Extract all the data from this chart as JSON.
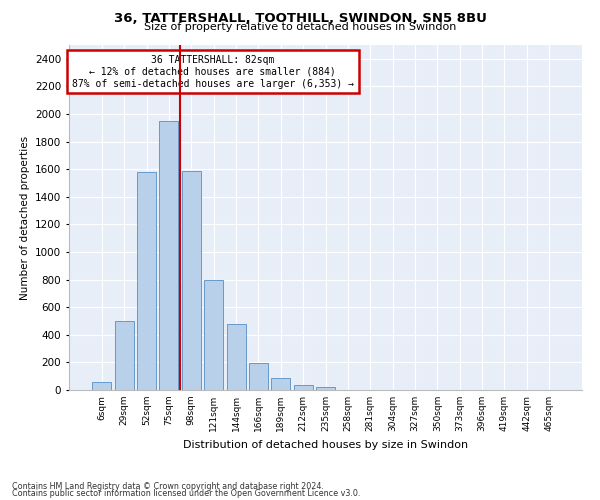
{
  "title": "36, TATTERSHALL, TOOTHILL, SWINDON, SN5 8BU",
  "subtitle": "Size of property relative to detached houses in Swindon",
  "xlabel": "Distribution of detached houses by size in Swindon",
  "ylabel": "Number of detached properties",
  "footnote1": "Contains HM Land Registry data © Crown copyright and database right 2024.",
  "footnote2": "Contains public sector information licensed under the Open Government Licence v3.0.",
  "annotation_title": "36 TATTERSHALL: 82sqm",
  "annotation_line1": "← 12% of detached houses are smaller (884)",
  "annotation_line2": "87% of semi-detached houses are larger (6,353) →",
  "bar_color": "#b8d0ea",
  "bar_edge_color": "#6699cc",
  "redline_color": "#cc0000",
  "annotation_box_color": "#cc0000",
  "background_color": "#e8eef8",
  "categories": [
    "6sqm",
    "29sqm",
    "52sqm",
    "75sqm",
    "98sqm",
    "121sqm",
    "144sqm",
    "166sqm",
    "189sqm",
    "212sqm",
    "235sqm",
    "258sqm",
    "281sqm",
    "304sqm",
    "327sqm",
    "350sqm",
    "373sqm",
    "396sqm",
    "419sqm",
    "442sqm",
    "465sqm"
  ],
  "values": [
    55,
    500,
    1580,
    1950,
    1590,
    800,
    475,
    195,
    90,
    35,
    25,
    0,
    0,
    0,
    0,
    0,
    0,
    0,
    0,
    0,
    0
  ],
  "ylim": [
    0,
    2500
  ],
  "yticks": [
    0,
    200,
    400,
    600,
    800,
    1000,
    1200,
    1400,
    1600,
    1800,
    2000,
    2200,
    2400
  ],
  "redline_x": 3.5
}
